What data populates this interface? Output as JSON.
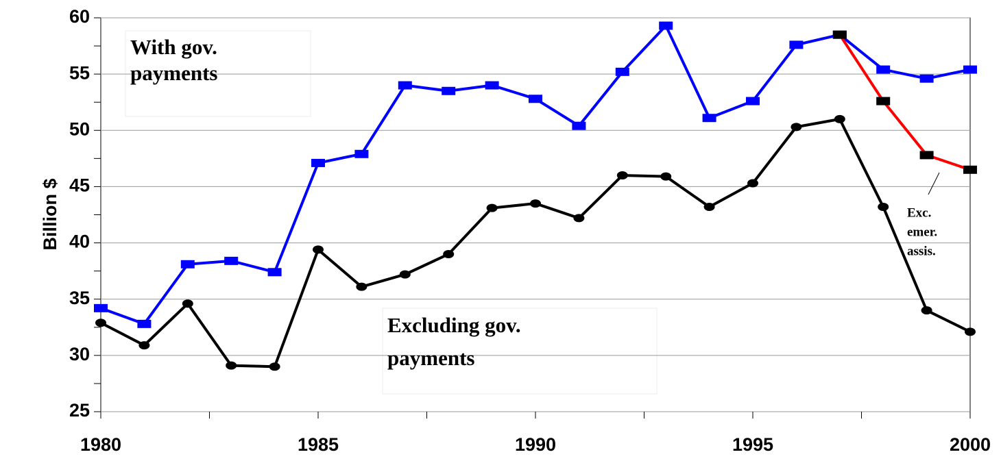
{
  "chart_data": {
    "type": "line",
    "y_label": "Billion $",
    "x": [
      1980,
      1981,
      1982,
      1983,
      1984,
      1985,
      1986,
      1987,
      1988,
      1989,
      1990,
      1991,
      1992,
      1993,
      1994,
      1995,
      1996,
      1997,
      1998,
      1999,
      2000
    ],
    "series": [
      {
        "color": "#0000ff",
        "marker": "square",
        "marker_color": "#0000ff",
        "values": [
          34.2,
          32.8,
          38.1,
          38.4,
          37.4,
          47.1,
          47.9,
          54.0,
          53.5,
          54.0,
          52.8,
          50.4,
          55.2,
          59.3,
          51.1,
          52.6,
          57.6,
          58.5,
          55.4,
          54.6,
          55.4
        ]
      },
      {
        "color": "#000000",
        "marker": "circle",
        "marker_color": "#000000",
        "values": [
          32.9,
          30.9,
          34.6,
          29.1,
          29.0,
          39.4,
          36.1,
          37.2,
          39.0,
          43.1,
          43.5,
          42.2,
          46.0,
          45.9,
          43.2,
          45.3,
          50.3,
          51.0,
          43.2,
          34.0,
          32.1
        ]
      },
      {
        "color": "#ff0000",
        "marker": "square",
        "marker_color": "#000000",
        "values": [
          null,
          null,
          null,
          null,
          null,
          null,
          null,
          null,
          null,
          null,
          null,
          null,
          null,
          null,
          null,
          null,
          null,
          58.5,
          52.6,
          47.8,
          46.5
        ]
      }
    ],
    "annotations": [
      {
        "lines": [
          "With gov.",
          "payments"
        ]
      },
      {
        "lines": [
          "Excluding gov.",
          "payments"
        ]
      },
      {
        "lines": [
          "Exc.",
          "emer.",
          "assis."
        ]
      }
    ],
    "xlim": [
      1980,
      2000
    ],
    "xticks": [
      1980,
      1985,
      1990,
      1995,
      2000
    ],
    "ylim": [
      25,
      60
    ],
    "yticks": [
      25,
      30,
      35,
      40,
      45,
      50,
      55,
      60
    ],
    "grid": true
  }
}
